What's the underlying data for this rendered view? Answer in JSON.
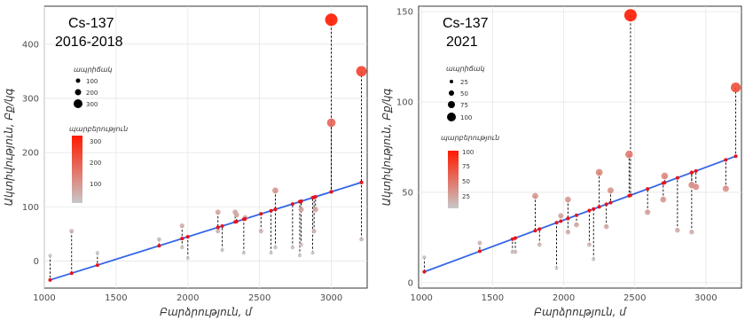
{
  "chart_data": [
    {
      "type": "scatter",
      "title": "Cs-137",
      "subtitle": "2016-2018",
      "xlabel": "Բարձրություն, մ",
      "ylabel": "Ակտիվություն, Բք/կգ",
      "xlim": [
        1000,
        3250
      ],
      "ylim": [
        -50,
        470
      ],
      "xticks": [
        1000,
        1500,
        2000,
        2500,
        3000
      ],
      "yticks": [
        0,
        100,
        200,
        300,
        400
      ],
      "grid": true,
      "trend": {
        "x": [
          1040,
          3210
        ],
        "y": [
          -35,
          145
        ]
      },
      "points": [
        [
          1040,
          10
        ],
        [
          1190,
          55
        ],
        [
          1370,
          15
        ],
        [
          1800,
          40
        ],
        [
          1960,
          65
        ],
        [
          1960,
          25
        ],
        [
          2000,
          5
        ],
        [
          2210,
          90
        ],
        [
          2210,
          55
        ],
        [
          2240,
          20
        ],
        [
          2330,
          90
        ],
        [
          2340,
          85
        ],
        [
          2390,
          15
        ],
        [
          2400,
          80
        ],
        [
          2510,
          55
        ],
        [
          2580,
          15
        ],
        [
          2610,
          130
        ],
        [
          2610,
          25
        ],
        [
          2730,
          25
        ],
        [
          2780,
          10
        ],
        [
          2790,
          30
        ],
        [
          2790,
          95
        ],
        [
          2870,
          15
        ],
        [
          2880,
          55
        ],
        [
          2890,
          95
        ],
        [
          3000,
          255
        ],
        [
          3000,
          445
        ],
        [
          3210,
          40
        ],
        [
          3210,
          350
        ]
      ],
      "legend_size": {
        "title": "ապրիճակ",
        "labels": [
          "100",
          "200",
          "300"
        ]
      },
      "legend_color": {
        "title": "պարբերություն",
        "labels": [
          "300",
          "200",
          "100"
        ],
        "colors": [
          "#ff1a00",
          "#c8c8c8"
        ]
      }
    },
    {
      "type": "scatter",
      "title": "Cs-137",
      "subtitle": "2021",
      "xlabel": "Բարձրություն, մ",
      "ylabel": "Ակտիվություն, Բք/կգ",
      "xlim": [
        980,
        3250
      ],
      "ylim": [
        -3,
        153
      ],
      "xticks": [
        1000,
        1500,
        2000,
        2500,
        3000
      ],
      "yticks": [
        0,
        50,
        100,
        150
      ],
      "grid": true,
      "trend": {
        "x": [
          1020,
          3210
        ],
        "y": [
          6,
          70
        ]
      },
      "points": [
        [
          1020,
          14
        ],
        [
          1410,
          22
        ],
        [
          1640,
          17
        ],
        [
          1660,
          17
        ],
        [
          1800,
          48
        ],
        [
          1830,
          21
        ],
        [
          1950,
          8
        ],
        [
          1980,
          37
        ],
        [
          2030,
          46
        ],
        [
          2030,
          28
        ],
        [
          2090,
          32
        ],
        [
          2180,
          21
        ],
        [
          2210,
          13
        ],
        [
          2250,
          61
        ],
        [
          2300,
          31
        ],
        [
          2330,
          51
        ],
        [
          2460,
          71
        ],
        [
          2470,
          148
        ],
        [
          2590,
          39
        ],
        [
          2700,
          46
        ],
        [
          2710,
          59
        ],
        [
          2800,
          29
        ],
        [
          2900,
          28
        ],
        [
          2900,
          54
        ],
        [
          2930,
          53
        ],
        [
          3140,
          52
        ],
        [
          3210,
          108
        ]
      ],
      "legend_size": {
        "title": "ապրիճակ",
        "labels": [
          "25",
          "50",
          "75",
          "100"
        ]
      },
      "legend_color": {
        "title": "պարբերություն",
        "labels": [
          "100",
          "75",
          "50",
          "25"
        ],
        "colors": [
          "#ff1a00",
          "#c8c8c8"
        ]
      }
    }
  ]
}
